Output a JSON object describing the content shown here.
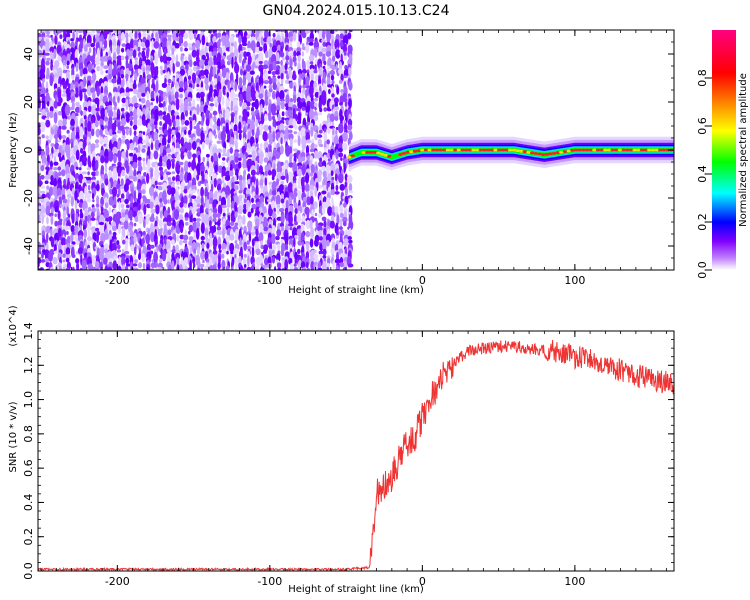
{
  "title": "GN04.2024.015.10.13.C24",
  "chart_data": [
    {
      "type": "heatmap",
      "xlabel": "Height of straight line (km)",
      "ylabel": "Frequency (Hz)",
      "xlim": [
        -252,
        165
      ],
      "ylim": [
        -50,
        50
      ],
      "xticks": [
        -200,
        -100,
        0,
        100
      ],
      "yticks": [
        -40,
        -20,
        0,
        20,
        40
      ],
      "noise_region_x": [
        -252,
        -48
      ],
      "signal_ridge": {
        "x": [
          -48,
          -40,
          -30,
          -20,
          -10,
          0,
          20,
          40,
          60,
          80,
          100,
          120,
          140,
          165
        ],
        "y": [
          -3,
          -1,
          -1,
          -3,
          -1,
          0,
          0,
          0,
          0,
          -2,
          0,
          0,
          0,
          0
        ]
      },
      "colorbar": {
        "label": "Normalized spectral amplitude",
        "ticks": [
          "0.0",
          "0.2",
          "0.4",
          "0.6",
          "0.8"
        ],
        "colors": [
          "#ffffff",
          "#8000ff",
          "#0000ff",
          "#00ffff",
          "#00ff00",
          "#ffff00",
          "#ff8000",
          "#ff0000",
          "#ff0080"
        ]
      }
    },
    {
      "type": "line",
      "xlabel": "Height of straight line (km)",
      "ylabel": "SNR (10 * v/v)",
      "yscale_label": "(x10^4)",
      "xlim": [
        -252,
        165
      ],
      "ylim": [
        0,
        1.4
      ],
      "xticks": [
        -200,
        -100,
        0,
        100
      ],
      "yticks": [
        "0.0",
        "0.2",
        "0.4",
        "0.6",
        "0.8",
        "1.0",
        "1.2",
        "1.4"
      ],
      "color": "#ee3333",
      "series": [
        {
          "x": [
            -252,
            -150,
            -50,
            -35,
            -34,
            -30,
            -25,
            -20,
            -15,
            -10,
            -5,
            0,
            5,
            10,
            15,
            20,
            25,
            30,
            40,
            50,
            60,
            70,
            80,
            90,
            100,
            110,
            120,
            130,
            140,
            150,
            160,
            165
          ],
          "y": [
            0.01,
            0.01,
            0.01,
            0.02,
            0.05,
            0.45,
            0.5,
            0.55,
            0.65,
            0.75,
            0.78,
            0.9,
            1.0,
            1.08,
            1.15,
            1.2,
            1.25,
            1.28,
            1.3,
            1.31,
            1.31,
            1.3,
            1.29,
            1.27,
            1.25,
            1.23,
            1.2,
            1.17,
            1.14,
            1.12,
            1.1,
            1.1
          ]
        }
      ]
    }
  ]
}
